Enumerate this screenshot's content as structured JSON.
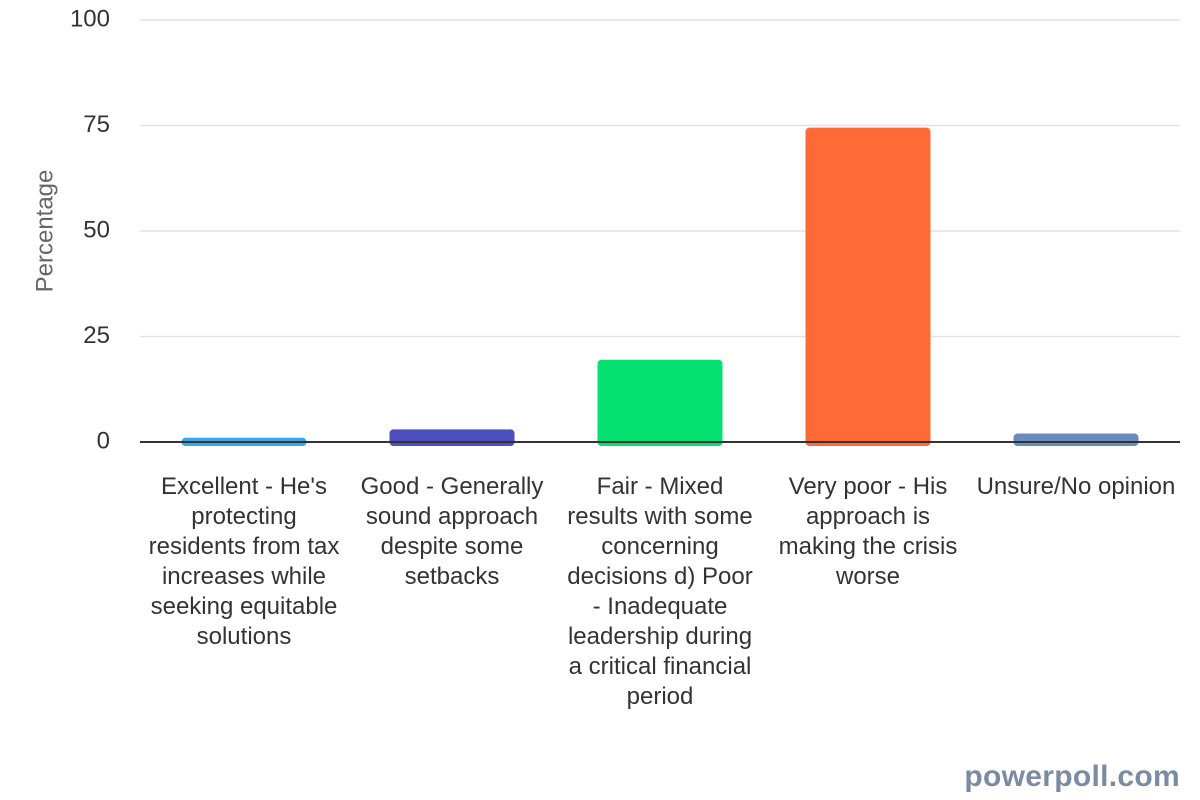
{
  "chart_data": {
    "type": "bar",
    "ylabel": "Percentage",
    "ylim": [
      0,
      100
    ],
    "yticks": [
      0,
      25,
      50,
      75,
      100
    ],
    "grid": true,
    "categories": [
      "Excellent - He's protecting residents from tax increases while seeking equitable solutions",
      "Good - Generally sound approach despite some setbacks",
      "Fair - Mixed results with some concerning decisions d) Poor - Inadequate leadership during a critical financial period",
      "Very poor - His approach is making the crisis worse",
      "Unsure/No opinion"
    ],
    "values": [
      1,
      3,
      19.5,
      74.5,
      2
    ],
    "colors": [
      "#36a8f0",
      "#4d4fbf",
      "#05e073",
      "#ff6a36",
      "#6b8abf"
    ]
  },
  "watermark": "powerpoll.com"
}
